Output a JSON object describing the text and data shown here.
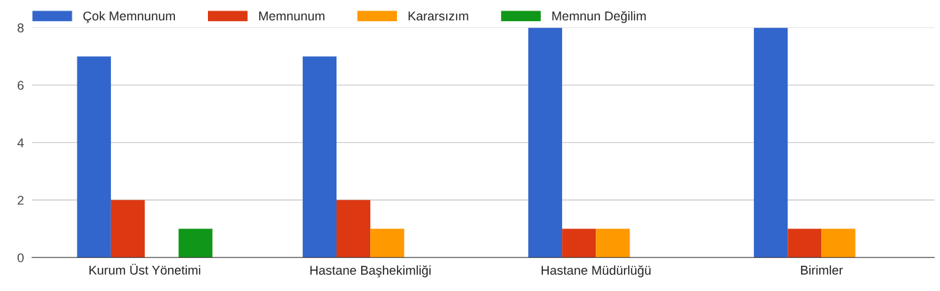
{
  "chart_data": {
    "type": "bar",
    "categories": [
      "Kurum Üst Yönetimi",
      "Hastane Başhekimliği",
      "Hastane Müdürlüğü",
      "Birimler"
    ],
    "series": [
      {
        "name": "Çok Memnunum",
        "color": "#3366cc",
        "values": [
          7,
          7,
          8,
          8
        ]
      },
      {
        "name": "Memnunum",
        "color": "#dc3912",
        "values": [
          2,
          2,
          1,
          1
        ]
      },
      {
        "name": "Kararsızım",
        "color": "#ff9900",
        "values": [
          0,
          1,
          1,
          1
        ]
      },
      {
        "name": "Memnun Değilim",
        "color": "#109618",
        "values": [
          1,
          0,
          0,
          0
        ]
      }
    ],
    "ylim": [
      0,
      8
    ],
    "yticks": [
      0,
      2,
      4,
      6,
      8
    ],
    "grid": "y",
    "legend": "top left"
  }
}
